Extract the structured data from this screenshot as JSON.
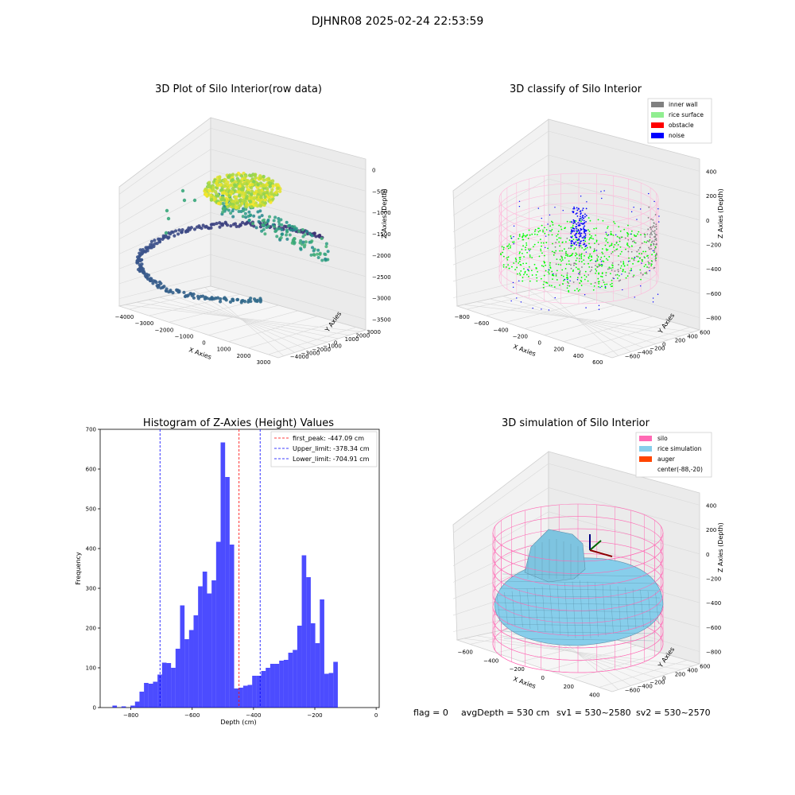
{
  "suptitle": "DJHNR08 2025-02-24 22:53:59",
  "status_line": {
    "flag": "flag = 0",
    "avg_depth": "avgDepth = 530 cm",
    "sv1": "sv1 = 530~2580",
    "sv2": "sv2 = 530~2570"
  },
  "panels": {
    "raw": {
      "title": "3D Plot of Silo Interior(row data)",
      "xlabel": "X Axies",
      "ylabel": "Y Axies",
      "zlabel": "Z Axies (Depth)",
      "xticks": [
        "−4000",
        "−3000",
        "−2000",
        "−1000",
        "0",
        "1000",
        "2000",
        "3000"
      ],
      "yticks": [
        "3000",
        "2000",
        "1000",
        "0",
        "−1000",
        "−2000",
        "−3000",
        "−4000"
      ],
      "zticks": [
        "0",
        "−500",
        "−1000",
        "−1500",
        "−2000",
        "−2500",
        "−3000",
        "−3500"
      ]
    },
    "classify": {
      "title": "3D classify of Silo Interior",
      "xlabel": "X Axies",
      "ylabel": "Y Axies",
      "zlabel": "Z Axies (Depth)",
      "xticks": [
        "−800",
        "−600",
        "−400",
        "−200",
        "0",
        "200",
        "400",
        "600"
      ],
      "yticks": [
        "600",
        "400",
        "200",
        "0",
        "−200",
        "−400",
        "−600"
      ],
      "zticks": [
        "400",
        "200",
        "0",
        "−200",
        "−400",
        "−600",
        "−800"
      ],
      "legend": [
        {
          "label": "inner wall",
          "color": "#808080"
        },
        {
          "label": "rice surface",
          "color": "#90ee90"
        },
        {
          "label": "obstacle",
          "color": "#ff0000"
        },
        {
          "label": "noise",
          "color": "#0000ff"
        }
      ]
    },
    "simulation": {
      "title": "3D simulation of Silo Interior",
      "xlabel": "X Axies",
      "ylabel": "Y Axies",
      "zlabel": "Z Axies (Depth)",
      "xticks": [
        "−600",
        "−400",
        "−200",
        "0",
        "200",
        "400"
      ],
      "yticks": [
        "600",
        "400",
        "200",
        "0",
        "−200",
        "−400",
        "−600"
      ],
      "zticks": [
        "400",
        "200",
        "0",
        "−200",
        "−400",
        "−600",
        "−800"
      ],
      "legend": [
        {
          "label": "silo",
          "color": "#ff69b4"
        },
        {
          "label": "rice simulation",
          "color": "#87ceeb"
        },
        {
          "label": "auger",
          "color": "#ff4500"
        },
        {
          "label": "center(-88,-20)",
          "color": ""
        }
      ]
    }
  },
  "chart_data": {
    "type": "bar",
    "title": "Histogram of Z-Axies (Height) Values",
    "xlabel": "Depth (cm)",
    "ylabel": "Frequency",
    "xlim": [
      -900,
      10
    ],
    "ylim": [
      0,
      700
    ],
    "xticks": [
      -800,
      -600,
      -400,
      -200,
      0
    ],
    "yticks": [
      0,
      100,
      200,
      300,
      400,
      500,
      600,
      700
    ],
    "bar_color": "#0000ff",
    "bin_width": 14.7,
    "bin_starts": [
      -860,
      -845.3,
      -830.6,
      -815.9,
      -801.2,
      -786.5,
      -771.8,
      -757.1,
      -742.4,
      -727.7,
      -713,
      -698.3,
      -683.6,
      -668.9,
      -654.2,
      -639.5,
      -624.8,
      -610.1,
      -595.4,
      -580.7,
      -566,
      -551.3,
      -536.6,
      -521.9,
      -507.2,
      -492.5,
      -477.8,
      -463.1,
      -448.4,
      -433.7,
      -419,
      -404.3,
      -389.6,
      -374.9,
      -360.2,
      -345.5,
      -330.8,
      -316.1,
      -301.4,
      -286.7,
      -272,
      -257.3,
      -242.6,
      -227.9,
      -213.2,
      -198.5,
      -183.8,
      -169.1,
      -154.4,
      -139.7,
      -125,
      -110.3,
      -95.6,
      -80.9,
      -66.2,
      -51.5,
      -36.8,
      -22.1,
      -7.4
    ],
    "values": [
      5,
      0,
      3,
      0,
      5,
      15,
      40,
      62,
      60,
      65,
      83,
      113,
      112,
      100,
      148,
      257,
      172,
      195,
      232,
      305,
      342,
      287,
      320,
      417,
      667,
      580,
      410,
      48,
      50,
      55,
      57,
      80,
      80,
      92,
      100,
      110,
      110,
      118,
      120,
      138,
      145,
      206,
      383,
      328,
      212,
      162,
      272,
      85,
      87,
      115,
      0,
      0,
      0,
      0,
      0,
      0,
      0,
      0,
      0
    ],
    "reference_lines": [
      {
        "label": "first_peak: -447.09 cm",
        "x": -447.09,
        "color": "#ff0000"
      },
      {
        "label": "Upper_limit: -378.34 cm",
        "x": -378.34,
        "color": "#0000ff"
      },
      {
        "label": "Lower_limit: -704.91 cm",
        "x": -704.91,
        "color": "#0000ff"
      }
    ],
    "legend_position": "top-right"
  }
}
